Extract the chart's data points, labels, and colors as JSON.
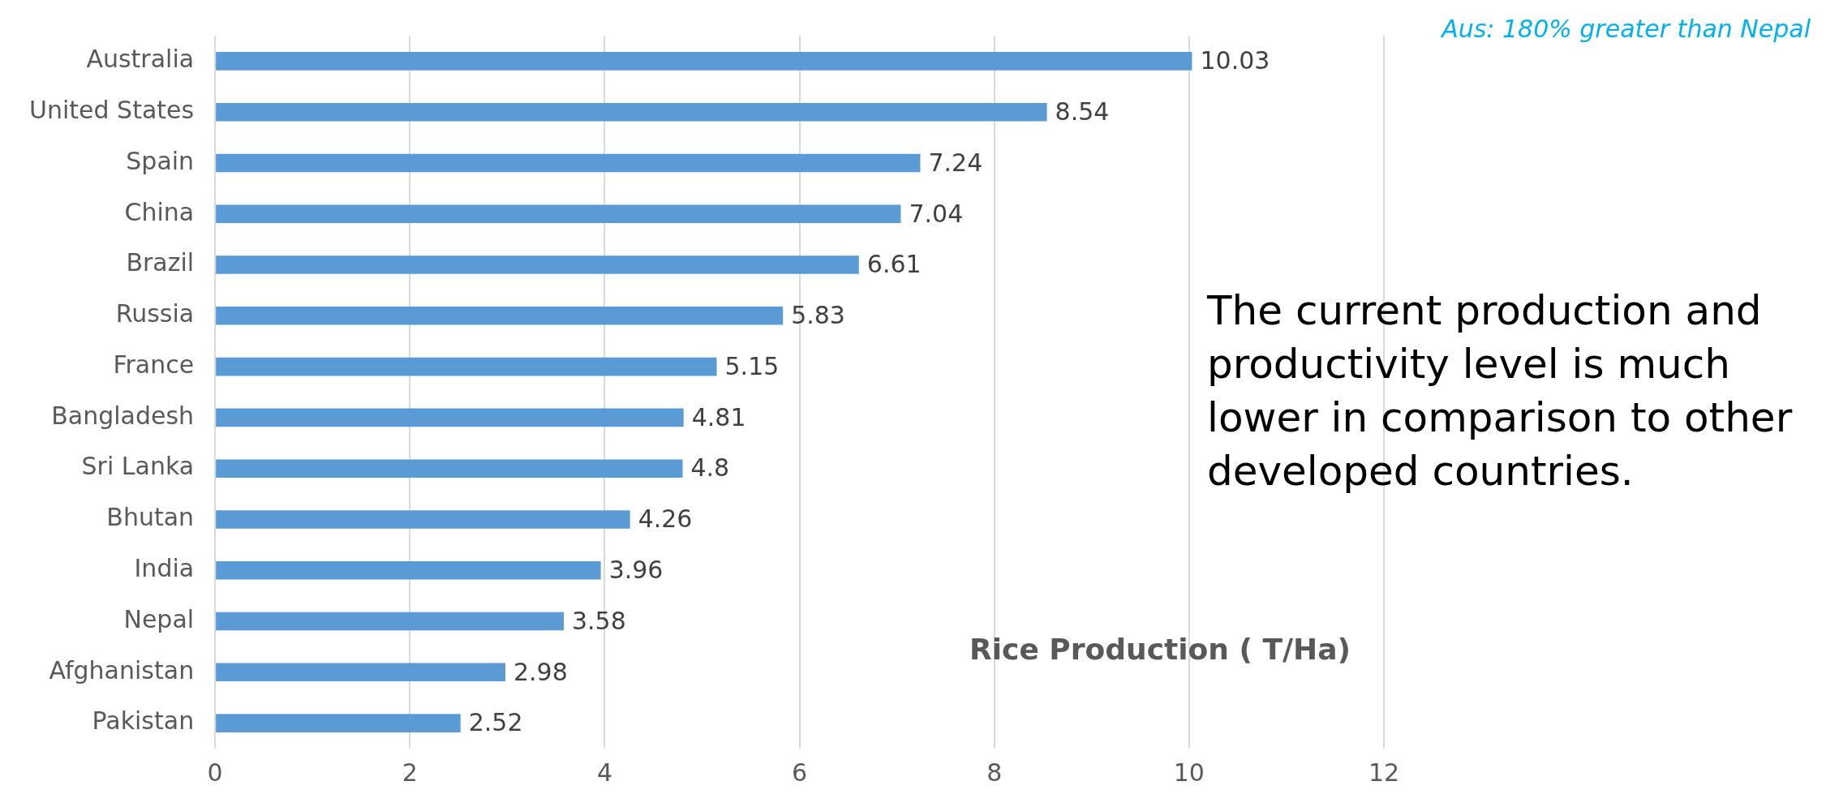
{
  "chart_data": {
    "type": "bar",
    "orientation": "horizontal",
    "title": "Rice Production ( T/Ha)",
    "categories": [
      "Australia",
      "United States",
      "Spain",
      "China",
      "Brazil",
      "Russia",
      "France",
      "Bangladesh",
      "Sri Lanka",
      "Bhutan",
      "India",
      "Nepal",
      "Afghanistan",
      "Pakistan"
    ],
    "values": [
      10.03,
      8.54,
      7.24,
      7.04,
      6.61,
      5.83,
      5.15,
      4.81,
      4.8,
      4.26,
      3.96,
      3.58,
      2.98,
      2.52
    ],
    "color": "#5b9bd5",
    "xlim": [
      0,
      12
    ],
    "xticks": [
      0,
      2,
      4,
      6,
      8,
      10,
      12
    ],
    "grid": "x",
    "data_labels": true,
    "legend": false,
    "annotations": [
      "Aus: 180% greater than Nepal",
      "The current production and productivity level is  much lower in comparison to other developed countries."
    ]
  }
}
